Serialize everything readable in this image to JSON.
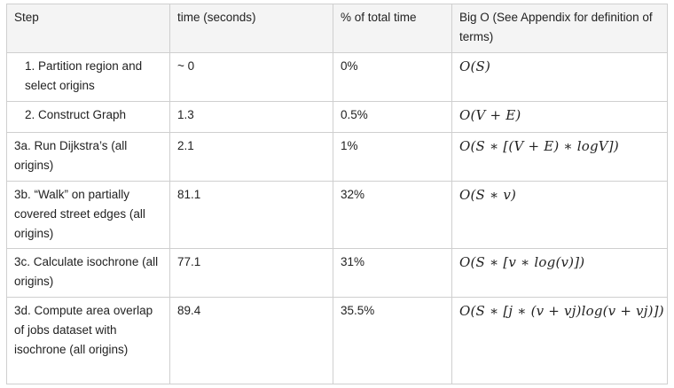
{
  "headers": {
    "step": "Step",
    "time": "time (seconds)",
    "percent": "% of total time",
    "bigo": "Big O (See Appendix for definition of terms)"
  },
  "rows": [
    {
      "step": "1.  Partition region and select origins",
      "time": "~ 0",
      "percent": "0%",
      "bigo": "O(S)"
    },
    {
      "step": "2.  Construct Graph",
      "time": "1.3",
      "percent": "0.5%",
      "bigo": "O(V + E)"
    },
    {
      "step": "3a. Run Dijkstra’s (all origins)",
      "time": "2.1",
      "percent": "1%",
      "bigo": "O(S ∗ [(V + E) ∗ logV])"
    },
    {
      "step": "3b. “Walk” on partially covered street edges (all origins)",
      "time": "81.1",
      "percent": "32%",
      "bigo": "O(S ∗ v)"
    },
    {
      "step": "3c. Calculate isochrone (all origins)",
      "time": "77.1",
      "percent": "31%",
      "bigo": "O(S ∗ [v ∗ log(v)])"
    },
    {
      "step": "3d. Compute area overlap of jobs dataset with isochrone (all origins)",
      "time": "89.4",
      "percent": "35.5%",
      "bigo": "O(S ∗ [j ∗ (v + vj)log(v + vj)])"
    }
  ]
}
